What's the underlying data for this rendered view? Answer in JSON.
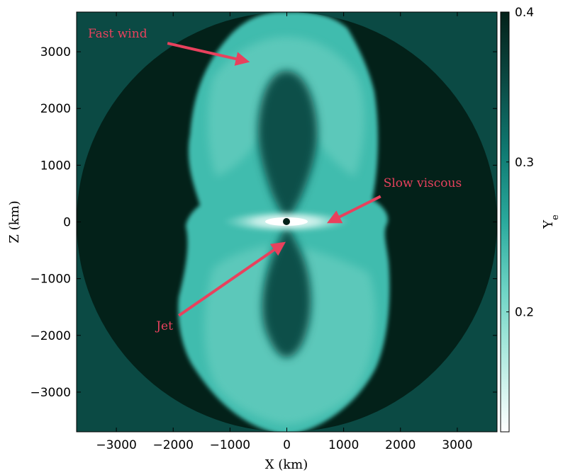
{
  "chart_data": {
    "type": "heatmap",
    "xlabel": "X (km)",
    "ylabel": "Z (km)",
    "xlim": [
      -3700,
      3700
    ],
    "ylim": [
      -3700,
      3700
    ],
    "x_ticks": [
      -3000,
      -2000,
      -1000,
      0,
      1000,
      2000,
      3000
    ],
    "y_ticks": [
      -3000,
      -2000,
      -1000,
      0,
      1000,
      2000,
      3000
    ],
    "x_tick_labels": [
      "−3000",
      "−2000",
      "−1000",
      "0",
      "1000",
      "2000",
      "3000"
    ],
    "y_tick_labels": [
      "−3000",
      "−2000",
      "−1000",
      "0",
      "1000",
      "2000",
      "3000"
    ],
    "domain_radius_km": 3700,
    "colorbar": {
      "label": "Y",
      "label_subscript": "e",
      "range": [
        0.12,
        0.4
      ],
      "ticks": [
        0.2,
        0.3,
        0.4
      ],
      "tick_labels": [
        "0.2",
        "0.3",
        "0.4"
      ],
      "colormap": [
        "#ffffff",
        "#b7ece2",
        "#6fd5c6",
        "#2aaa9d",
        "#0f7a72",
        "#0b4a44",
        "#032119"
      ]
    },
    "field_description_values": {
      "background_ye": 0.4,
      "outflow_ye": 0.24,
      "inner_cavity_ye": 0.33,
      "equatorial_core_ye": 0.12
    },
    "annotations": [
      {
        "text": "Fast wind",
        "text_at": [
          -3500,
          3250
        ],
        "arrow_from": [
          -2100,
          3150
        ],
        "arrow_to": [
          -700,
          2830
        ]
      },
      {
        "text": "Slow viscous",
        "text_at": [
          1700,
          620
        ],
        "arrow_from": [
          1650,
          450
        ],
        "arrow_to": [
          750,
          0
        ]
      },
      {
        "text": "Jet",
        "text_at": [
          -2300,
          -1900
        ],
        "arrow_from": [
          -1900,
          -1650
        ],
        "arrow_to": [
          -60,
          -380
        ]
      }
    ],
    "annotation_color": "#e8415d"
  }
}
